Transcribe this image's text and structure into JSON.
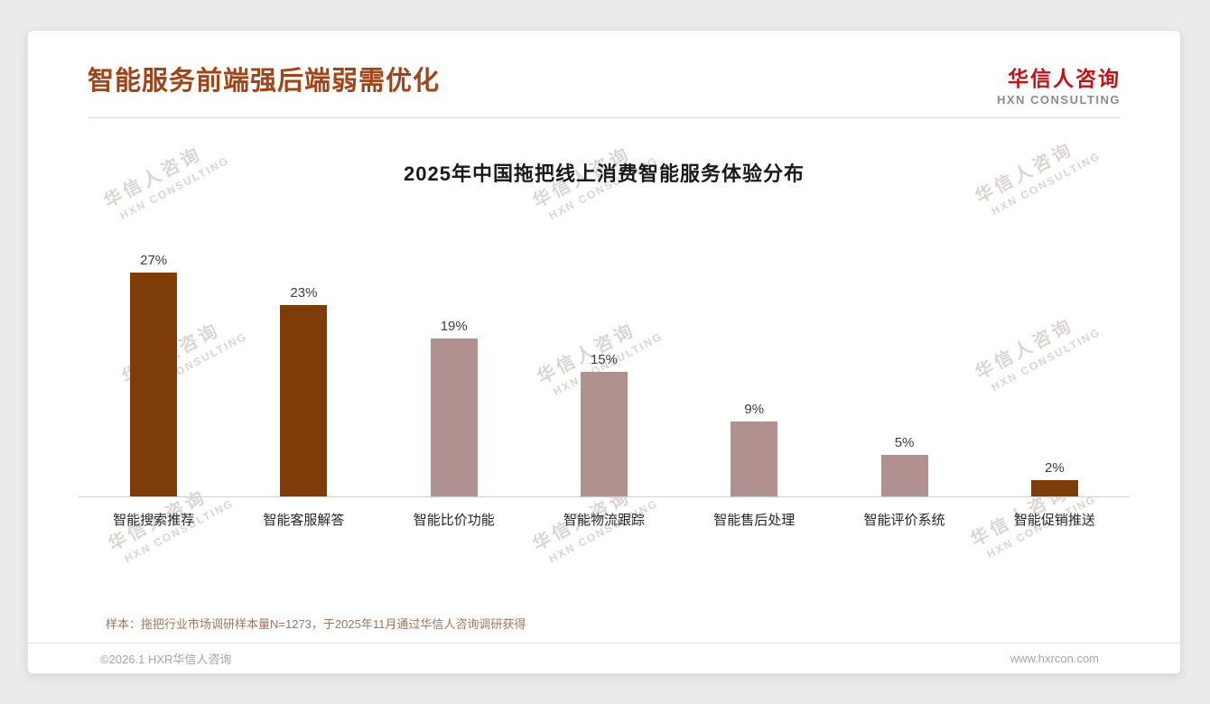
{
  "header": {
    "title": "智能服务前端强后端弱需优化",
    "logo_name": "华信人咨询",
    "logo_sub": "HXN CONSULTING"
  },
  "watermark": {
    "line1": "华信人咨询",
    "line2": "HXN CONSULTING"
  },
  "chart_data": {
    "type": "bar",
    "title": "2025年中国拖把线上消费智能服务体验分布",
    "categories": [
      "智能搜索推荐",
      "智能客服解答",
      "智能比价功能",
      "智能物流跟踪",
      "智能售后处理",
      "智能评价系统",
      "智能促销推送"
    ],
    "values": [
      27,
      23,
      19,
      15,
      9,
      5,
      2
    ],
    "value_labels": [
      "27%",
      "23%",
      "19%",
      "15%",
      "9%",
      "5%",
      "2%"
    ],
    "bar_colors": [
      "#7D3C08",
      "#7D3C08",
      "#B09190",
      "#B09190",
      "#B09190",
      "#B09190",
      "#7D3C08"
    ],
    "xlabel": "",
    "ylabel": "",
    "ylim": [
      0,
      30
    ],
    "grid": false,
    "legend": false
  },
  "footnote": "样本：拖把行业市场调研样本量N=1273，于2025年11月通过华信人咨询调研获得",
  "footer": {
    "copyright": "©2026.1 HXR华信人咨询",
    "website": "www.hxrcon.com"
  },
  "colors": {
    "accent_title": "#A0451A",
    "bar_dark": "#7D3C08",
    "bar_light": "#B09190",
    "logo_red": "#C11218",
    "watermark": "#DAD5D2"
  }
}
